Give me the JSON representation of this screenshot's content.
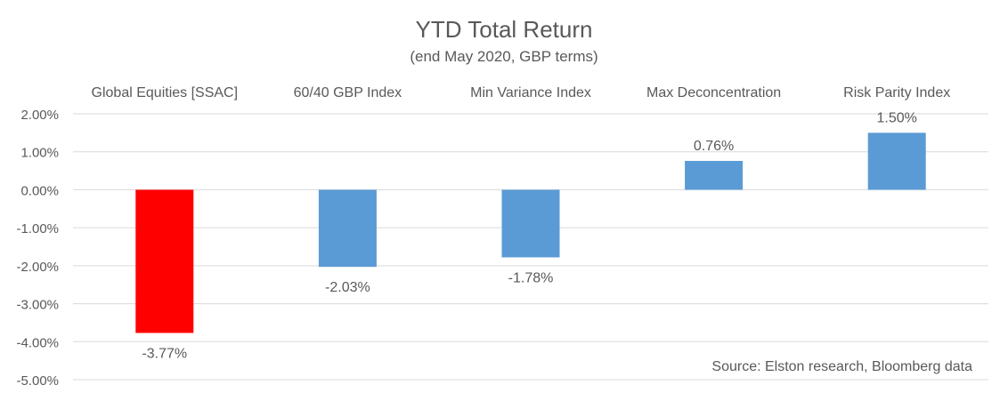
{
  "chart_data": {
    "type": "bar",
    "title": "YTD Total Return",
    "subtitle": "(end May 2020, GBP terms)",
    "categories": [
      "Global Equities [SSAC]",
      "60/40 GBP Index",
      "Min Variance Index",
      "Max Deconcentration",
      "Risk Parity Index"
    ],
    "values": [
      -3.77,
      -2.03,
      -1.78,
      0.76,
      1.5
    ],
    "data_labels": [
      "-3.77%",
      "-2.03%",
      "-1.78%",
      "0.76%",
      "1.50%"
    ],
    "bar_colors": [
      "#ff0000",
      "#5b9bd5",
      "#5b9bd5",
      "#5b9bd5",
      "#5b9bd5"
    ],
    "ylim": [
      -5,
      2
    ],
    "y_ticks": [
      2,
      1,
      0,
      -1,
      -2,
      -3,
      -4,
      -5
    ],
    "y_tick_labels": [
      "2.00%",
      "1.00%",
      "0.00%",
      "-1.00%",
      "-2.00%",
      "-3.00%",
      "-4.00%",
      "-5.00%"
    ],
    "xlabel": "",
    "ylabel": "",
    "grid": true,
    "category_label_position": "top",
    "annotation": "Source: Elston research, Bloomberg data"
  },
  "colors": {
    "gridline": "#d9d9d9",
    "text": "#595959"
  }
}
